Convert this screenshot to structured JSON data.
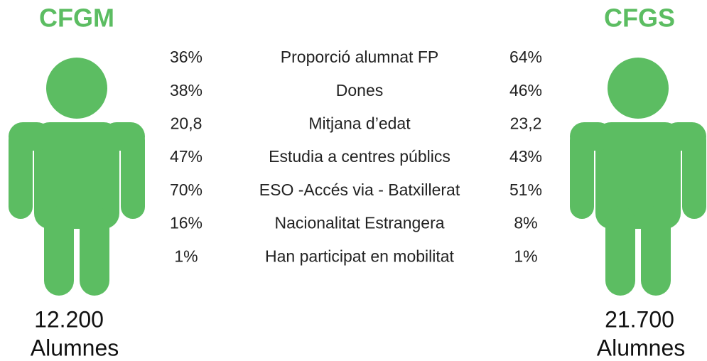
{
  "left": {
    "title": "CFGM",
    "count": "12.200",
    "unit": "Alumnes"
  },
  "right": {
    "title": "CFGS",
    "count": "21.700",
    "unit": "Alumnes"
  },
  "rows": [
    {
      "left": "36%",
      "label": "Proporció alumnat FP",
      "right": "64%"
    },
    {
      "left": "38%",
      "label": "Dones",
      "right": "46%"
    },
    {
      "left": "20,8",
      "label": "Mitjana d’edat",
      "right": "23,2"
    },
    {
      "left": "47%",
      "label": "Estudia a centres públics",
      "right": "43%"
    },
    {
      "left": "70%",
      "label": "ESO -Accés via - Batxillerat",
      "right": "51%"
    },
    {
      "left": "16%",
      "label": "Nacionalitat Estrangera",
      "right": "8%"
    },
    {
      "left": "1%",
      "label": "Han participat en mobilitat",
      "right": "1%"
    }
  ]
}
